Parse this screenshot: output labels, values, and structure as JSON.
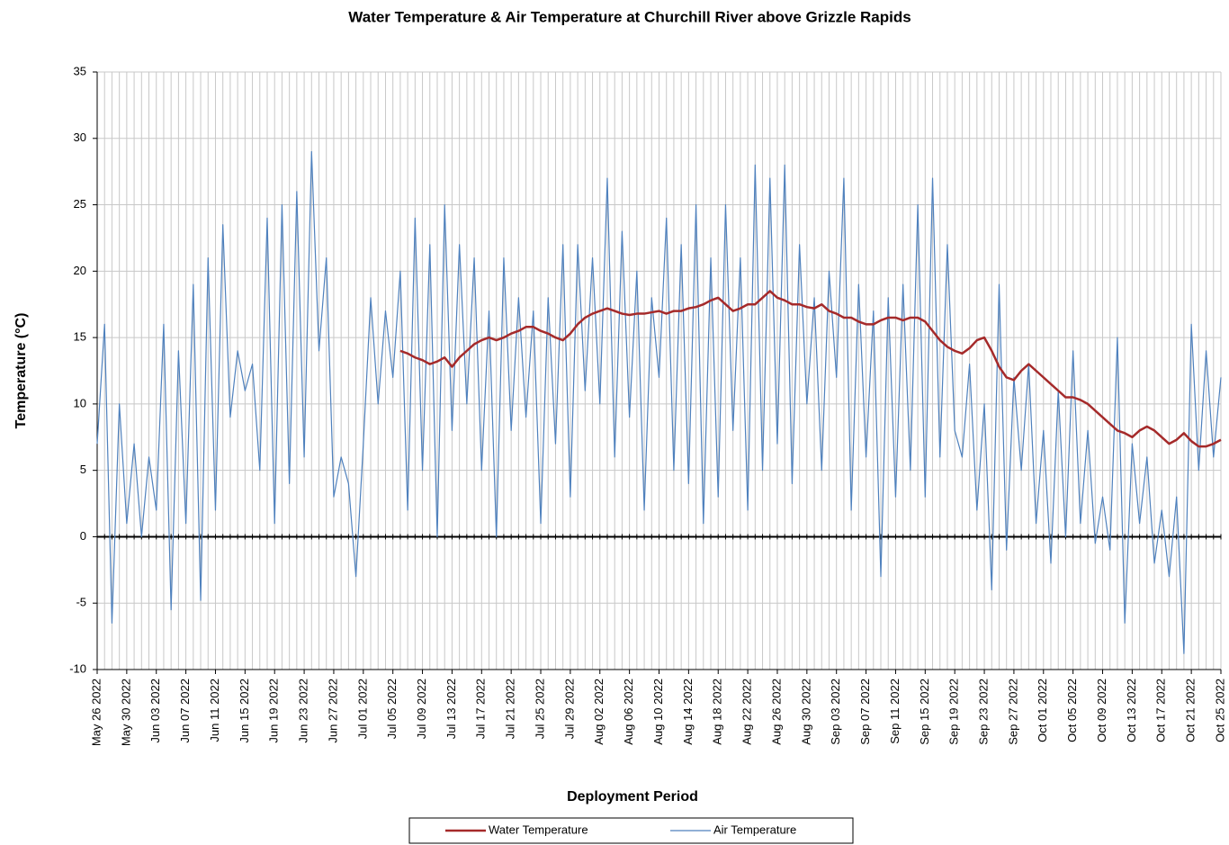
{
  "chart_data": {
    "type": "line",
    "title": "Water Temperature & Air Temperature at Churchill River above Grizzle Rapids",
    "x_label": "Deployment Period",
    "y_label": "Temperature (°C)",
    "x": [
      "2022-05-26",
      "2022-05-27",
      "2022-05-28",
      "2022-05-29",
      "2022-05-30",
      "2022-05-31",
      "2022-06-01",
      "2022-06-02",
      "2022-06-03",
      "2022-06-04",
      "2022-06-05",
      "2022-06-06",
      "2022-06-07",
      "2022-06-08",
      "2022-06-09",
      "2022-06-10",
      "2022-06-11",
      "2022-06-12",
      "2022-06-13",
      "2022-06-14",
      "2022-06-15",
      "2022-06-16",
      "2022-06-17",
      "2022-06-18",
      "2022-06-19",
      "2022-06-20",
      "2022-06-21",
      "2022-06-22",
      "2022-06-23",
      "2022-06-24",
      "2022-06-25",
      "2022-06-26",
      "2022-06-27",
      "2022-06-28",
      "2022-06-29",
      "2022-06-30",
      "2022-07-01",
      "2022-07-02",
      "2022-07-03",
      "2022-07-04",
      "2022-07-05",
      "2022-07-06",
      "2022-07-07",
      "2022-07-08",
      "2022-07-09",
      "2022-07-10",
      "2022-07-11",
      "2022-07-12",
      "2022-07-13",
      "2022-07-14",
      "2022-07-15",
      "2022-07-16",
      "2022-07-17",
      "2022-07-18",
      "2022-07-19",
      "2022-07-20",
      "2022-07-21",
      "2022-07-22",
      "2022-07-23",
      "2022-07-24",
      "2022-07-25",
      "2022-07-26",
      "2022-07-27",
      "2022-07-28",
      "2022-07-29",
      "2022-07-30",
      "2022-07-31",
      "2022-08-01",
      "2022-08-02",
      "2022-08-03",
      "2022-08-04",
      "2022-08-05",
      "2022-08-06",
      "2022-08-07",
      "2022-08-08",
      "2022-08-09",
      "2022-08-10",
      "2022-08-11",
      "2022-08-12",
      "2022-08-13",
      "2022-08-14",
      "2022-08-15",
      "2022-08-16",
      "2022-08-17",
      "2022-08-18",
      "2022-08-19",
      "2022-08-20",
      "2022-08-21",
      "2022-08-22",
      "2022-08-23",
      "2022-08-24",
      "2022-08-25",
      "2022-08-26",
      "2022-08-27",
      "2022-08-28",
      "2022-08-29",
      "2022-08-30",
      "2022-08-31",
      "2022-09-01",
      "2022-09-02",
      "2022-09-03",
      "2022-09-04",
      "2022-09-05",
      "2022-09-06",
      "2022-09-07",
      "2022-09-08",
      "2022-09-09",
      "2022-09-10",
      "2022-09-11",
      "2022-09-12",
      "2022-09-13",
      "2022-09-14",
      "2022-09-15",
      "2022-09-16",
      "2022-09-17",
      "2022-09-18",
      "2022-09-19",
      "2022-09-20",
      "2022-09-21",
      "2022-09-22",
      "2022-09-23",
      "2022-09-24",
      "2022-09-25",
      "2022-09-26",
      "2022-09-27",
      "2022-09-28",
      "2022-09-29",
      "2022-09-30",
      "2022-10-01",
      "2022-10-02",
      "2022-10-03",
      "2022-10-04",
      "2022-10-05",
      "2022-10-06",
      "2022-10-07",
      "2022-10-08",
      "2022-10-09",
      "2022-10-10",
      "2022-10-11",
      "2022-10-12",
      "2022-10-13",
      "2022-10-14",
      "2022-10-15",
      "2022-10-16",
      "2022-10-17",
      "2022-10-18",
      "2022-10-19",
      "2022-10-20",
      "2022-10-21",
      "2022-10-22",
      "2022-10-23",
      "2022-10-24",
      "2022-10-25"
    ],
    "series": [
      {
        "name": "Water Temperature",
        "color": "#a52a2a",
        "width": 2.5,
        "values": [
          null,
          null,
          null,
          null,
          null,
          null,
          null,
          null,
          null,
          null,
          null,
          null,
          null,
          null,
          null,
          null,
          null,
          null,
          null,
          null,
          null,
          null,
          null,
          null,
          null,
          null,
          null,
          null,
          null,
          null,
          null,
          null,
          null,
          null,
          null,
          null,
          null,
          null,
          null,
          null,
          null,
          14,
          13.8,
          13.5,
          13.3,
          13,
          13.2,
          13.5,
          12.8,
          13.5,
          14,
          14.5,
          14.8,
          15,
          14.8,
          15,
          15.3,
          15.5,
          15.8,
          15.8,
          15.5,
          15.3,
          15,
          14.8,
          15.3,
          16,
          16.5,
          16.8,
          17,
          17.2,
          17,
          16.8,
          16.7,
          16.8,
          16.8,
          16.9,
          17,
          16.8,
          17,
          17,
          17.2,
          17.3,
          17.5,
          17.8,
          18,
          17.5,
          17,
          17.2,
          17.5,
          17.5,
          18,
          18.5,
          18,
          17.8,
          17.5,
          17.5,
          17.3,
          17.2,
          17.5,
          17,
          16.8,
          16.5,
          16.5,
          16.2,
          16,
          16,
          16.3,
          16.5,
          16.5,
          16.3,
          16.5,
          16.5,
          16.2,
          15.5,
          14.8,
          14.3,
          14,
          13.8,
          14.2,
          14.8,
          15,
          14,
          12.8,
          12,
          11.8,
          12.5,
          13,
          12.5,
          12,
          11.5,
          11,
          10.5,
          10.5,
          10.3,
          10,
          9.5,
          9,
          8.5,
          8,
          7.8,
          7.5,
          8,
          8.3,
          8,
          7.5,
          7,
          7.3,
          7.8,
          7.2,
          6.8,
          6.8,
          7,
          7.3
        ]
      },
      {
        "name": "Air Temperature",
        "color": "#4f81bd",
        "width": 1.2,
        "values": [
          7,
          16,
          -6.5,
          10,
          1,
          7,
          0,
          6,
          2,
          16,
          -5.5,
          14,
          1,
          19,
          -4.8,
          21,
          2,
          23.5,
          9,
          14,
          11,
          13,
          5,
          24,
          1,
          25,
          4,
          26,
          6,
          29,
          14,
          21,
          3,
          6,
          4,
          -3,
          7,
          18,
          10,
          17,
          12,
          20,
          2,
          24,
          5,
          22,
          0,
          25,
          8,
          22,
          10,
          21,
          5,
          17,
          0,
          21,
          8,
          18,
          9,
          17,
          1,
          18,
          7,
          22,
          3,
          22,
          11,
          21,
          10,
          27,
          6,
          23,
          9,
          20,
          2,
          18,
          12,
          24,
          5,
          22,
          4,
          25,
          1,
          21,
          3,
          25,
          8,
          21,
          2,
          28,
          5,
          27,
          7,
          28,
          4,
          22,
          10,
          18,
          5,
          20,
          12,
          27,
          2,
          19,
          6,
          17,
          -3,
          18,
          3,
          19,
          5,
          25,
          3,
          27,
          6,
          22,
          8,
          6,
          13,
          2,
          10,
          -4,
          19,
          -1,
          12,
          5,
          13,
          1,
          8,
          -2,
          11,
          0,
          14,
          1,
          8,
          -0.5,
          3,
          -1,
          15,
          -6.5,
          7,
          1,
          6,
          -2,
          2,
          -3,
          3,
          -8.8,
          16,
          5,
          14,
          6,
          12
        ]
      }
    ],
    "xlim": [
      "2022-05-26",
      "2022-10-25"
    ],
    "xticks": [
      {
        "value": "2022-05-26",
        "label": "May 26 2022"
      },
      {
        "value": "2022-05-30",
        "label": "May 30 2022"
      },
      {
        "value": "2022-06-03",
        "label": "Jun 03 2022"
      },
      {
        "value": "2022-06-07",
        "label": "Jun 07 2022"
      },
      {
        "value": "2022-06-11",
        "label": "Jun 11 2022"
      },
      {
        "value": "2022-06-15",
        "label": "Jun 15 2022"
      },
      {
        "value": "2022-06-19",
        "label": "Jun 19 2022"
      },
      {
        "value": "2022-06-23",
        "label": "Jun 23 2022"
      },
      {
        "value": "2022-06-27",
        "label": "Jun 27 2022"
      },
      {
        "value": "2022-07-01",
        "label": "Jul 01 2022"
      },
      {
        "value": "2022-07-05",
        "label": "Jul 05 2022"
      },
      {
        "value": "2022-07-09",
        "label": "Jul 09 2022"
      },
      {
        "value": "2022-07-13",
        "label": "Jul 13 2022"
      },
      {
        "value": "2022-07-17",
        "label": "Jul 17 2022"
      },
      {
        "value": "2022-07-21",
        "label": "Jul 21 2022"
      },
      {
        "value": "2022-07-25",
        "label": "Jul 25 2022"
      },
      {
        "value": "2022-07-29",
        "label": "Jul 29 2022"
      },
      {
        "value": "2022-08-02",
        "label": "Aug 02 2022"
      },
      {
        "value": "2022-08-06",
        "label": "Aug 06 2022"
      },
      {
        "value": "2022-08-10",
        "label": "Aug 10 2022"
      },
      {
        "value": "2022-08-14",
        "label": "Aug 14 2022"
      },
      {
        "value": "2022-08-18",
        "label": "Aug 18 2022"
      },
      {
        "value": "2022-08-22",
        "label": "Aug 22 2022"
      },
      {
        "value": "2022-08-26",
        "label": "Aug 26 2022"
      },
      {
        "value": "2022-08-30",
        "label": "Aug 30 2022"
      },
      {
        "value": "2022-09-03",
        "label": "Sep 03 2022"
      },
      {
        "value": "2022-09-07",
        "label": "Sep 07 2022"
      },
      {
        "value": "2022-09-11",
        "label": "Sep 11 2022"
      },
      {
        "value": "2022-09-15",
        "label": "Sep 15 2022"
      },
      {
        "value": "2022-09-19",
        "label": "Sep 19 2022"
      },
      {
        "value": "2022-09-23",
        "label": "Sep 23 2022"
      },
      {
        "value": "2022-09-27",
        "label": "Sep 27 2022"
      },
      {
        "value": "2022-10-01",
        "label": "Oct 01 2022"
      },
      {
        "value": "2022-10-05",
        "label": "Oct 05 2022"
      },
      {
        "value": "2022-10-09",
        "label": "Oct 09 2022"
      },
      {
        "value": "2022-10-13",
        "label": "Oct 13 2022"
      },
      {
        "value": "2022-10-17",
        "label": "Oct 17 2022"
      },
      {
        "value": "2022-10-21",
        "label": "Oct 21 2022"
      },
      {
        "value": "2022-10-25",
        "label": "Oct 25 2022"
      }
    ],
    "ylim": [
      -10,
      35
    ],
    "yticks": [
      -10,
      -5,
      0,
      5,
      10,
      15,
      20,
      25,
      30,
      35
    ],
    "grid": true,
    "legend": "bottom"
  }
}
